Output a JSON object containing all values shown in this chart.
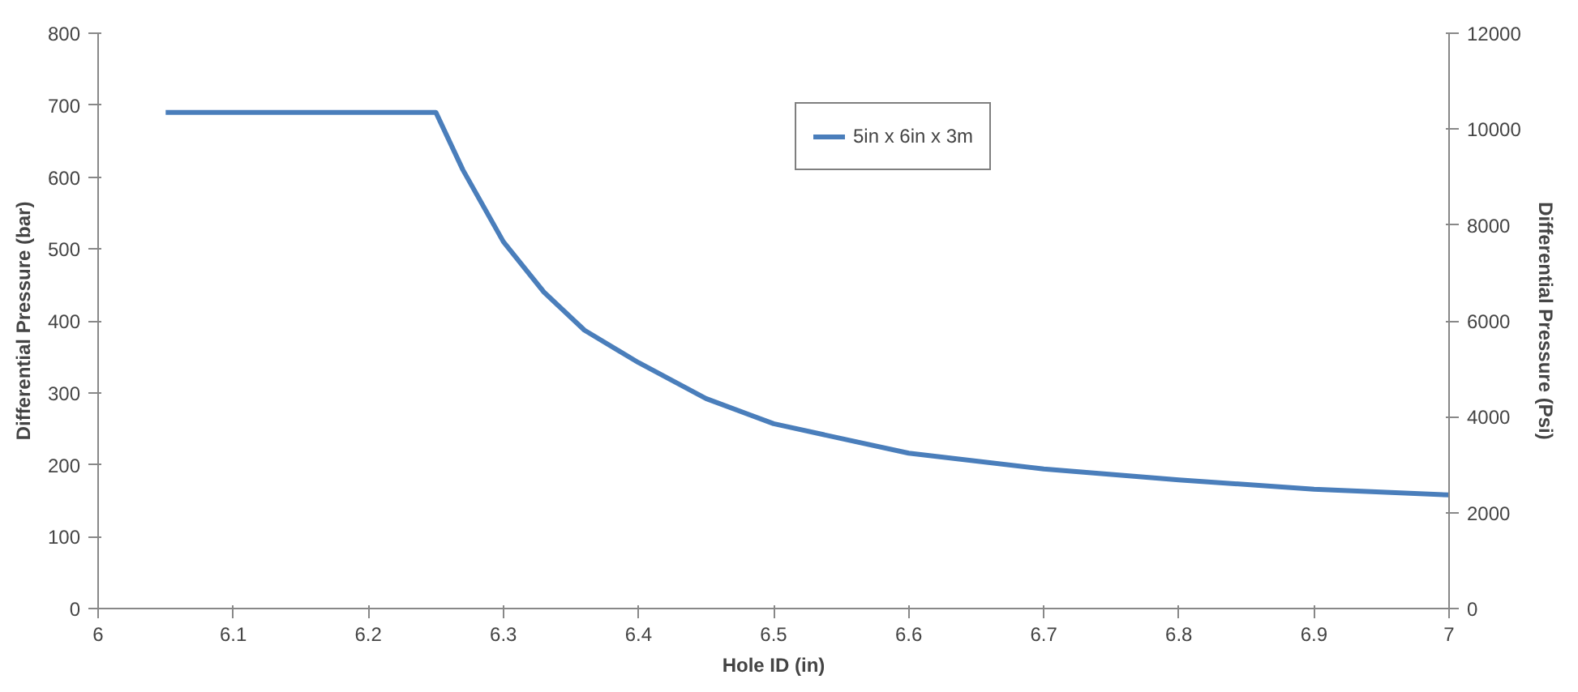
{
  "chart_data": {
    "type": "line",
    "xlabel": "Hole ID (in)",
    "ylabel": "Differential Pressure (bar)",
    "y2label": "Differential Pressure (Psi)",
    "xlim": [
      6,
      7
    ],
    "xticks": [
      6,
      6.1,
      6.2,
      6.3,
      6.4,
      6.5,
      6.6,
      6.7,
      6.8,
      6.9,
      7
    ],
    "ylim": [
      0,
      800
    ],
    "yticks": [
      0,
      100,
      200,
      300,
      400,
      500,
      600,
      700,
      800
    ],
    "y2lim": [
      0,
      12000
    ],
    "y2ticks": [
      0,
      2000,
      4000,
      6000,
      8000,
      10000,
      12000
    ],
    "grid": false,
    "legend": "top",
    "marker": "none",
    "line_style": "solid",
    "series": [
      {
        "name": "5in x 6in x 3m",
        "color": "#4a7ebb",
        "x": [
          6.05,
          6.1,
          6.15,
          6.2,
          6.25,
          6.27,
          6.3,
          6.33,
          6.36,
          6.4,
          6.45,
          6.5,
          6.6,
          6.7,
          6.8,
          6.9,
          7.0
        ],
        "values": [
          690,
          690,
          690,
          690,
          690,
          610,
          510,
          440,
          387,
          342,
          292,
          257,
          216,
          194,
          179,
          166,
          158
        ]
      }
    ]
  }
}
